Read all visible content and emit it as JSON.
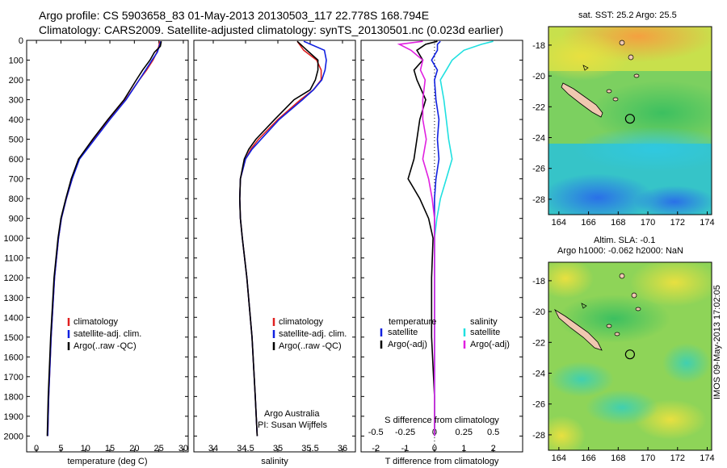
{
  "header": {
    "title_line1": "Argo profile: CS 5903658_83 01-May-2013 20130503_117 22.778S 168.794E",
    "title_line2": "Climatology: CARS2009. Satellite-adjusted climatology: synTS_20130501.nc (0.023d earlier)"
  },
  "colors": {
    "climatology": "#e02020",
    "satellite": "#1020e0",
    "argo": "#000000",
    "sal_satellite": "#20e0e0",
    "sal_argo": "#e020e0"
  },
  "chart_data": [
    {
      "type": "line",
      "id": "temperature",
      "xlabel": "temperature (deg C)",
      "xlim": [
        -2,
        31
      ],
      "xticks": [
        0,
        5,
        10,
        15,
        20,
        25,
        30
      ],
      "ylim": [
        0,
        2080
      ],
      "yticks": [
        0,
        100,
        200,
        300,
        400,
        500,
        600,
        700,
        800,
        900,
        1000,
        1100,
        1200,
        1300,
        1400,
        1500,
        1600,
        1700,
        1800,
        1900,
        2000
      ],
      "depth": [
        5,
        30,
        60,
        100,
        150,
        200,
        300,
        400,
        500,
        600,
        700,
        800,
        900,
        1000,
        1200,
        1500,
        1800,
        2000
      ],
      "series": [
        {
          "name": "climatology",
          "values": [
            25.2,
            25.0,
            24.6,
            23.8,
            22.5,
            21.0,
            18.2,
            14.8,
            11.8,
            8.6,
            7.3,
            6.1,
            5.1,
            4.5,
            3.7,
            3.0,
            2.5,
            2.3
          ]
        },
        {
          "name": "satellite-adj. clim.",
          "values": [
            25.4,
            25.1,
            24.7,
            23.6,
            22.3,
            21.0,
            18.3,
            15.0,
            11.9,
            8.8,
            7.3,
            6.1,
            5.1,
            4.5,
            3.7,
            3.0,
            2.5,
            2.3
          ]
        },
        {
          "name": "Argo(..raw -QC)",
          "values": [
            25.5,
            25.3,
            24.1,
            23.2,
            21.7,
            20.4,
            17.9,
            14.6,
            11.5,
            8.6,
            7.1,
            6.0,
            5.0,
            4.4,
            3.6,
            2.9,
            2.4,
            2.2
          ]
        }
      ],
      "legend": [
        "climatology",
        "satellite-adj. clim.",
        "Argo(..raw -QC)"
      ],
      "legend_position": "lower-middle"
    },
    {
      "type": "line",
      "id": "salinity",
      "xlabel": "salinity",
      "xlim": [
        33.7,
        36.2
      ],
      "xticks": [
        34,
        34.5,
        35,
        35.5,
        36
      ],
      "ylim": [
        0,
        2080
      ],
      "depth": [
        5,
        50,
        100,
        150,
        200,
        250,
        300,
        400,
        500,
        550,
        600,
        700,
        800,
        900,
        1000,
        1200,
        1500,
        1800,
        2000
      ],
      "series": [
        {
          "name": "climatology",
          "values": [
            35.3,
            35.4,
            35.6,
            35.67,
            35.67,
            35.55,
            35.35,
            35.0,
            34.7,
            34.58,
            34.5,
            34.42,
            34.41,
            34.42,
            34.45,
            34.52,
            34.6,
            34.65,
            34.68
          ]
        },
        {
          "name": "satellite-adj. clim.",
          "values": [
            35.4,
            35.72,
            35.75,
            35.73,
            35.68,
            35.55,
            35.38,
            35.02,
            34.74,
            34.6,
            34.5,
            34.42,
            34.41,
            34.42,
            34.45,
            34.52,
            34.6,
            34.65,
            34.68
          ]
        },
        {
          "name": "Argo(..raw -QC)",
          "values": [
            35.3,
            35.45,
            35.62,
            35.62,
            35.58,
            35.5,
            35.25,
            34.95,
            34.66,
            34.55,
            34.48,
            34.42,
            34.41,
            34.42,
            34.45,
            34.52,
            34.6,
            34.65,
            34.68
          ]
        }
      ],
      "legend": [
        "climatology",
        "satellite-adj. clim.",
        "Argo(..raw -QC)"
      ],
      "legend_position": "lower-right",
      "annotation_line1": "Argo Australia",
      "annotation_line2": "PI: Susan Wijffels"
    },
    {
      "type": "line",
      "id": "differences",
      "xlabel_top": "S difference from climatology",
      "xticks_top": [
        "-0.5",
        "-0.25",
        "0",
        "0.25",
        "0.5"
      ],
      "xlabel": "T difference from climatology",
      "xticks": [
        "-2",
        "-1",
        "0",
        "1",
        "2"
      ],
      "xlim": [
        -2.5,
        3.0
      ],
      "ylim": [
        0,
        2080
      ],
      "depth": [
        5,
        20,
        50,
        100,
        150,
        200,
        300,
        400,
        500,
        600,
        700,
        800,
        900,
        1000,
        1200,
        1500,
        1800,
        2000
      ],
      "series": [
        {
          "name": "temperature satellite",
          "values": [
            0.2,
            0.1,
            0.1,
            -0.1,
            0.1,
            0.0,
            0.05,
            0.15,
            0.1,
            0.15,
            0.05,
            0.0,
            0.0,
            0.0,
            0.0,
            0.0,
            0.0,
            0.0
          ]
        },
        {
          "name": "temperature Argo(-adj)",
          "values": [
            0.1,
            -0.3,
            -0.6,
            -0.4,
            -0.7,
            -0.6,
            -0.3,
            -0.5,
            -0.6,
            -0.7,
            -0.9,
            -0.5,
            -0.2,
            -0.05,
            -0.1,
            -0.1,
            0.0,
            0.0
          ]
        },
        {
          "name": "salinity satellite",
          "values": [
            0.5,
            0.4,
            0.25,
            0.15,
            0.1,
            0.05,
            0.08,
            0.1,
            0.12,
            0.15,
            0.1,
            0.05,
            0.02,
            0.0,
            0.0,
            0.0,
            0.0,
            0.0
          ]
        },
        {
          "name": "salinity Argo(-adj)",
          "values": [
            -0.1,
            -0.3,
            -0.2,
            -0.1,
            -0.12,
            -0.08,
            -0.1,
            -0.1,
            -0.07,
            -0.1,
            -0.05,
            -0.02,
            0.0,
            0.0,
            0.0,
            0.0,
            0.0,
            0.0
          ]
        }
      ],
      "legend_temperature": "temperature",
      "legend_salinity": "salinity",
      "legend_satellite": "satellite",
      "legend_argo": "Argo(-adj)"
    },
    {
      "type": "heatmap",
      "id": "sst-map",
      "title": "sat. SST: 25.2 Argo: 25.5",
      "xticks": [
        "164",
        "166",
        "168",
        "170",
        "172",
        "174"
      ],
      "yticks": [
        "-18",
        "-20",
        "-22",
        "-24",
        "-26",
        "-28"
      ],
      "xlim": [
        163.3,
        174.3
      ],
      "ylim": [
        -29.0,
        -16.8
      ],
      "argo_position": [
        168.794,
        -22.778
      ]
    },
    {
      "type": "heatmap",
      "id": "sla-map",
      "title_line1": "Altim. SLA: -0.1",
      "title_line2": "Argo h1000: -0.062 h2000: NaN",
      "xticks": [
        "164",
        "166",
        "168",
        "170",
        "172",
        "174"
      ],
      "yticks": [
        "-18",
        "-20",
        "-22",
        "-24",
        "-26",
        "-28"
      ],
      "xlim": [
        163.3,
        174.3
      ],
      "ylim": [
        -29.0,
        -16.8
      ],
      "argo_position": [
        168.794,
        -22.778
      ]
    }
  ],
  "footer": {
    "stamp": "IMOS 09-May-2013 17:02:05"
  }
}
